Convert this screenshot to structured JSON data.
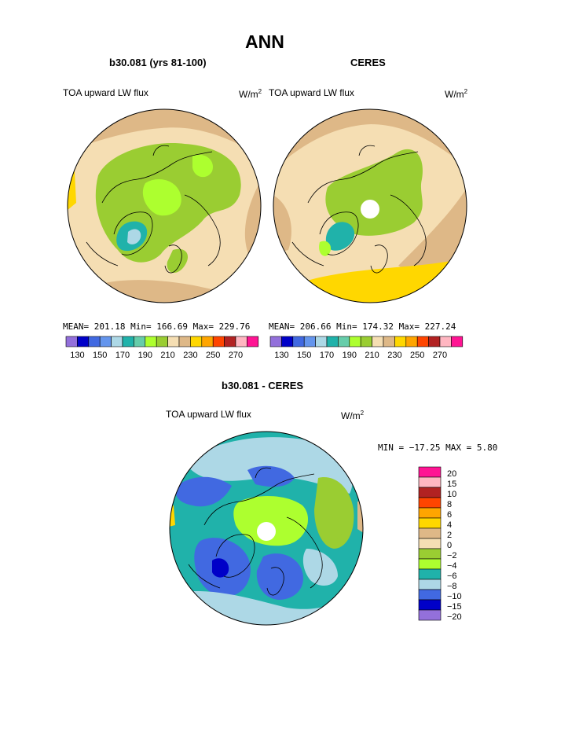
{
  "page": {
    "title": "ANN"
  },
  "panels": [
    {
      "heading": "b30.081 (yrs 81-100)",
      "field_label": "TOA upward LW flux",
      "units_base": "W/m",
      "units_exp": "2",
      "stats": "MEAN= 201.18  Min= 166.69  Max= 229.76",
      "pole_hole": false
    },
    {
      "heading": "CERES",
      "field_label": "TOA upward LW flux",
      "units_base": "W/m",
      "units_exp": "2",
      "stats": "MEAN= 206.66  Min= 174.32  Max= 227.24",
      "pole_hole": true
    }
  ],
  "colorbar_top": {
    "colors": [
      "#9370db",
      "#0000c8",
      "#4169e1",
      "#6495ed",
      "#add8e6",
      "#20b2aa",
      "#66cdaa",
      "#adff2f",
      "#9acd32",
      "#f5deb3",
      "#deb887",
      "#ffd700",
      "#ffa500",
      "#ff4500",
      "#b22222",
      "#ffb6c1",
      "#ff1493"
    ],
    "labels": [
      "130",
      "150",
      "170",
      "190",
      "210",
      "230",
      "250",
      "270"
    ]
  },
  "difference": {
    "heading": "b30.081 - CERES",
    "field_label": "TOA upward LW flux",
    "units_base": "W/m",
    "units_exp": "2",
    "minmax": "MIN = −17.25 MAX =   5.80",
    "colorbar": {
      "colors": [
        "#ff1493",
        "#ffb6c1",
        "#b22222",
        "#ff4500",
        "#ffa500",
        "#ffd700",
        "#deb887",
        "#f5deb3",
        "#9acd32",
        "#adff2f",
        "#20b2aa",
        "#add8e6",
        "#4169e1",
        "#0000c8",
        "#9370db"
      ],
      "labels": [
        "20",
        "15",
        "10",
        "8",
        "6",
        "4",
        "2",
        "0",
        "−2",
        "−4",
        "−6",
        "−8",
        "−10",
        "−15",
        "−20"
      ]
    }
  }
}
